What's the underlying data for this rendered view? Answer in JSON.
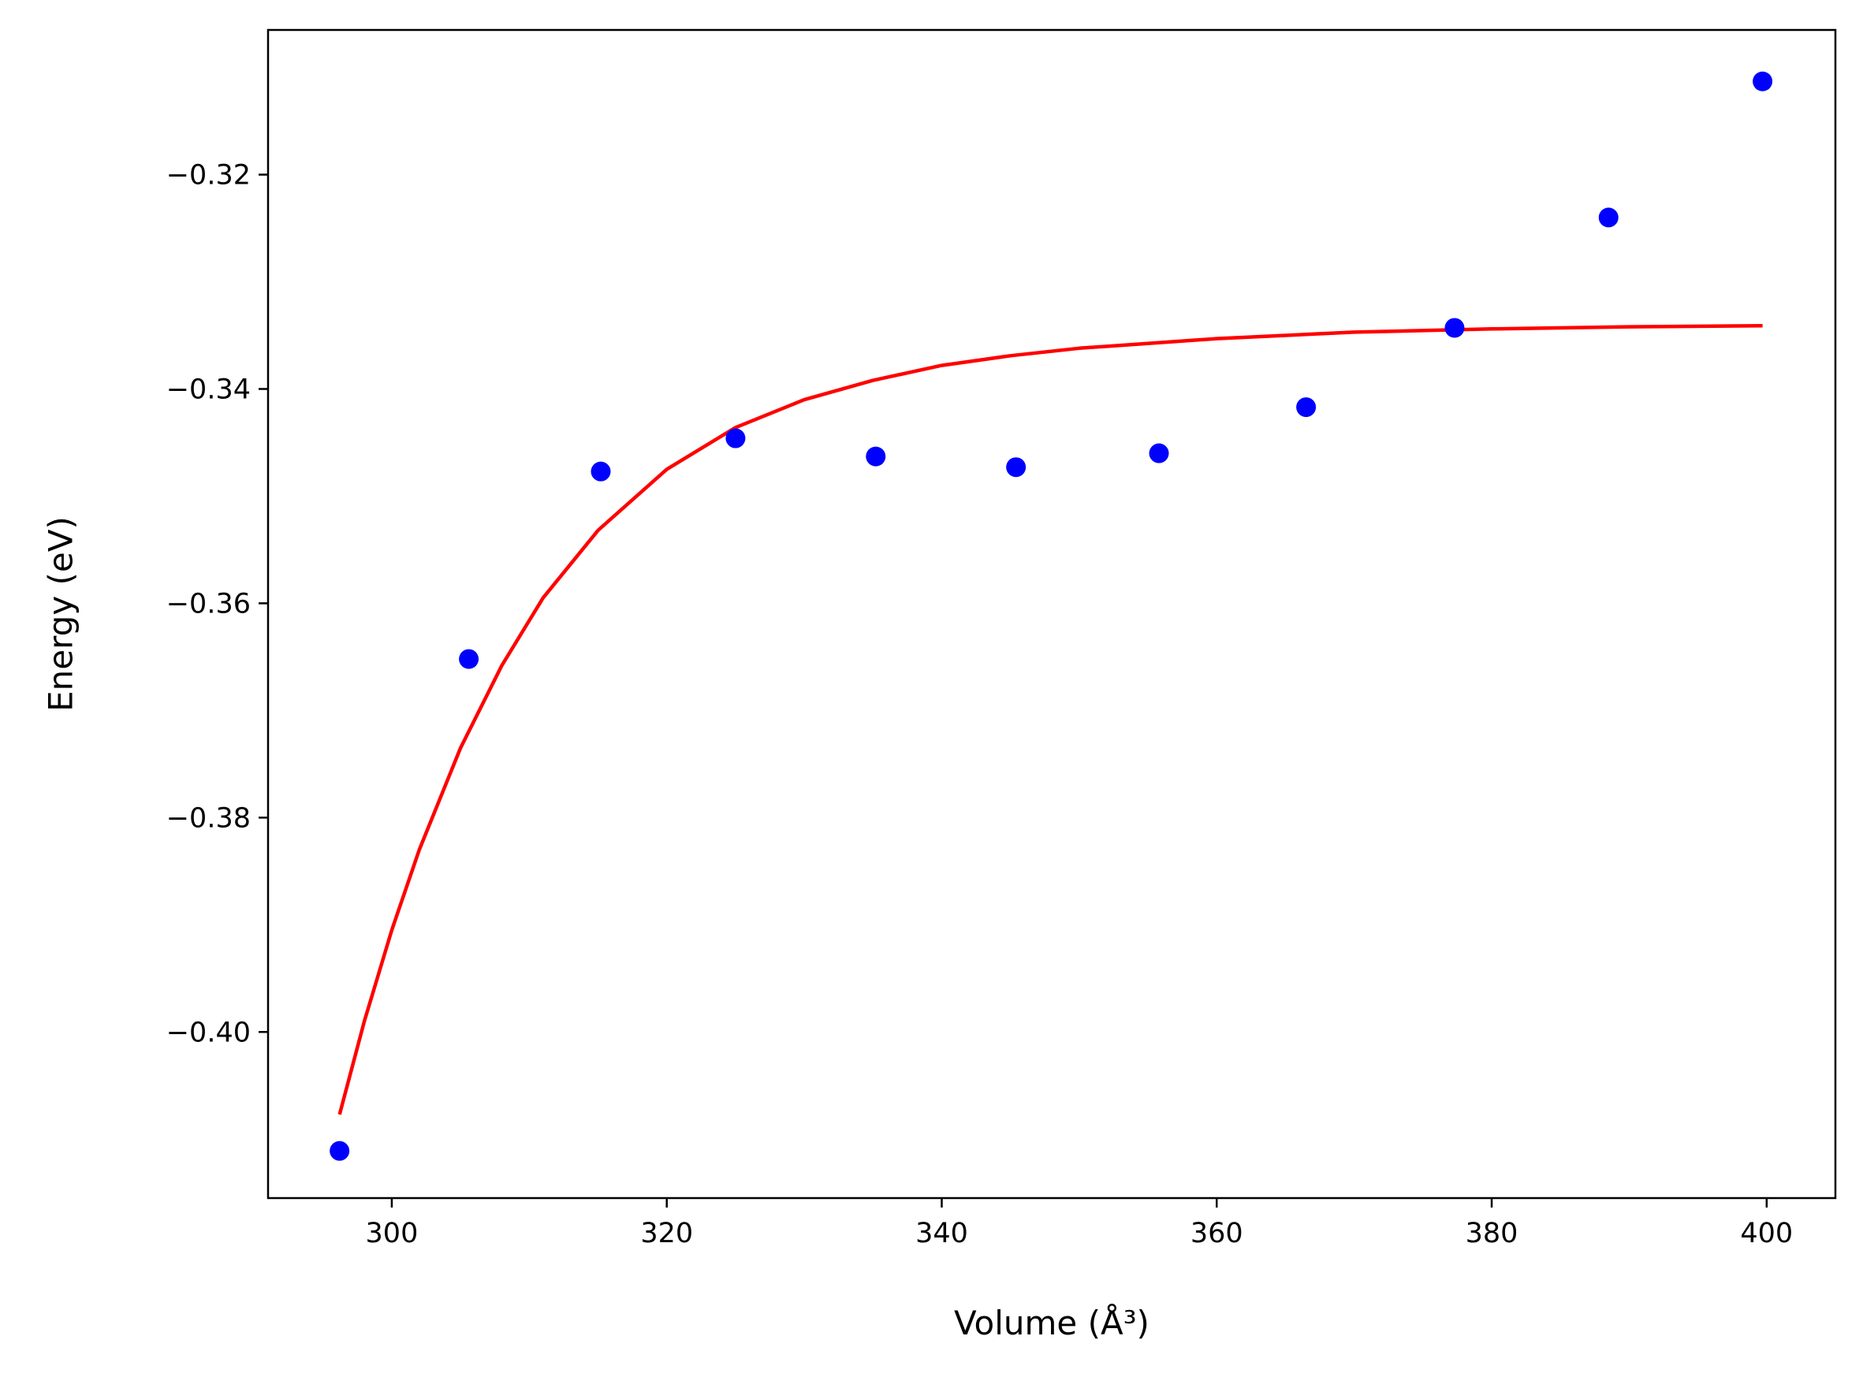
{
  "chart_data": {
    "type": "scatter",
    "title": "",
    "xlabel": "Volume (Å³)",
    "ylabel": "Energy (eV)",
    "xlim": [
      291,
      405
    ],
    "ylim": [
      -0.4155,
      -0.3065
    ],
    "xticks": [
      300,
      320,
      340,
      360,
      380,
      400
    ],
    "xtick_labels": [
      "300",
      "320",
      "340",
      "360",
      "380",
      "400"
    ],
    "yticks": [
      -0.4,
      -0.38,
      -0.36,
      -0.34,
      -0.32
    ],
    "ytick_labels": [
      "−0.40",
      "−0.38",
      "−0.36",
      "−0.34",
      "−0.32"
    ],
    "grid": false,
    "legend": "none",
    "series": [
      {
        "type": "scatter",
        "color": "#0000ff",
        "x": [
          296.2,
          305.6,
          315.2,
          325.0,
          335.2,
          345.4,
          355.8,
          366.5,
          377.3,
          388.5,
          399.7
        ],
        "y": [
          -0.4111,
          -0.3652,
          -0.3477,
          -0.3446,
          -0.3463,
          -0.3473,
          -0.346,
          -0.3417,
          -0.3343,
          -0.324,
          -0.3113
        ]
      },
      {
        "type": "line",
        "color": "#ff0000",
        "x": [
          296.2,
          298,
          300,
          302,
          305,
          308,
          311,
          315,
          320,
          325,
          330,
          335,
          340,
          345,
          350,
          360,
          370,
          380,
          390,
          399.7
        ],
        "y": [
          -0.4077,
          -0.399,
          -0.3905,
          -0.383,
          -0.3735,
          -0.3658,
          -0.3595,
          -0.3532,
          -0.3475,
          -0.3436,
          -0.341,
          -0.3392,
          -0.3378,
          -0.3369,
          -0.3362,
          -0.3353,
          -0.3347,
          -0.3344,
          -0.3342,
          -0.3341
        ]
      }
    ]
  }
}
